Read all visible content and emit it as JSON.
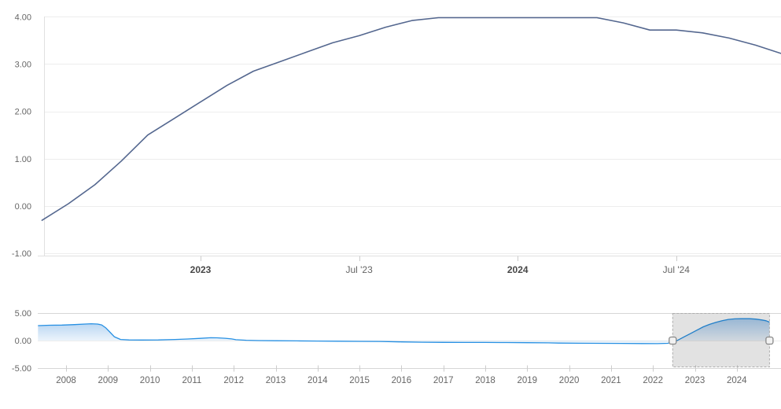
{
  "chart_data": [
    {
      "id": "main",
      "type": "line",
      "title": "",
      "xlabel": "",
      "ylabel": "",
      "x": [
        "Jul 2022",
        "Aug 2022",
        "Sep 2022",
        "Oct 2022",
        "Nov 2022",
        "Dec 2022",
        "Jan 2023",
        "Feb 2023",
        "Mar 2023",
        "Apr 2023",
        "May 2023",
        "Jun 2023",
        "Jul 2023",
        "Aug 2023",
        "Sep 2023",
        "Oct 2023",
        "Nov 2023",
        "Dec 2023",
        "Jan 2024",
        "Feb 2024",
        "Mar 2024",
        "Apr 2024",
        "May 2024",
        "Jun 2024",
        "Jul 2024",
        "Aug 2024",
        "Sep 2024",
        "Oct 2024",
        "Nov 2024"
      ],
      "values": [
        -0.3,
        0.05,
        0.45,
        0.95,
        1.5,
        1.85,
        2.2,
        2.55,
        2.85,
        3.05,
        3.25,
        3.45,
        3.6,
        3.78,
        3.92,
        3.98,
        3.98,
        3.98,
        3.98,
        3.98,
        3.98,
        3.98,
        3.87,
        3.72,
        3.72,
        3.66,
        3.55,
        3.4,
        3.22
      ],
      "ylim": [
        -1.0,
        4.0
      ],
      "grid": true,
      "legend": "none",
      "line_color": "#54678f",
      "yticks": [
        {
          "v": 4,
          "label": "4.00"
        },
        {
          "v": 3,
          "label": "3.00"
        },
        {
          "v": 2,
          "label": "2.00"
        },
        {
          "v": 1,
          "label": "1.00"
        },
        {
          "v": 0,
          "label": "0.00"
        },
        {
          "v": -1,
          "label": "-1.00"
        }
      ],
      "xticks": [
        {
          "i": 6,
          "label": "2023",
          "bold": true
        },
        {
          "i": 12,
          "label": "Jul '23",
          "bold": false
        },
        {
          "i": 18,
          "label": "2024",
          "bold": true
        },
        {
          "i": 24,
          "label": "Jul '24",
          "bold": false
        }
      ]
    },
    {
      "id": "navigator",
      "type": "area",
      "title": "",
      "x": [
        2007.33,
        2007.6,
        2007.9,
        2008.2,
        2008.45,
        2008.6,
        2008.75,
        2008.85,
        2008.95,
        2009.05,
        2009.15,
        2009.3,
        2009.5,
        2009.8,
        2010.2,
        2010.6,
        2010.9,
        2011.2,
        2011.45,
        2011.6,
        2011.8,
        2011.95,
        2012.05,
        2012.3,
        2012.6,
        2013.0,
        2013.5,
        2014.0,
        2014.5,
        2015.0,
        2015.5,
        2016.0,
        2016.5,
        2017.0,
        2017.5,
        2018.0,
        2018.5,
        2019.0,
        2019.5,
        2019.75,
        2020.25,
        2020.75,
        2021.25,
        2021.75,
        2022.1,
        2022.35,
        2022.5,
        2022.6,
        2022.75,
        2022.9,
        2023.05,
        2023.2,
        2023.35,
        2023.5,
        2023.65,
        2023.8,
        2023.95,
        2024.1,
        2024.3,
        2024.45,
        2024.6,
        2024.7,
        2024.78
      ],
      "values": [
        2.72,
        2.78,
        2.82,
        2.9,
        3.0,
        3.05,
        3.0,
        2.85,
        2.3,
        1.5,
        0.7,
        0.2,
        0.12,
        0.1,
        0.12,
        0.2,
        0.28,
        0.4,
        0.52,
        0.5,
        0.42,
        0.3,
        0.15,
        0.05,
        0.0,
        -0.03,
        -0.06,
        -0.09,
        -0.12,
        -0.14,
        -0.16,
        -0.24,
        -0.3,
        -0.33,
        -0.35,
        -0.35,
        -0.36,
        -0.38,
        -0.42,
        -0.46,
        -0.48,
        -0.5,
        -0.52,
        -0.54,
        -0.55,
        -0.5,
        -0.25,
        0.1,
        0.7,
        1.3,
        1.9,
        2.5,
        2.95,
        3.3,
        3.6,
        3.85,
        3.95,
        3.97,
        3.97,
        3.9,
        3.75,
        3.6,
        3.35
      ],
      "ylim": [
        -5.0,
        5.0
      ],
      "legend": "none",
      "line_color": "#2790e3",
      "area_color": "#2f85d9",
      "yticks": [
        {
          "v": 5,
          "label": "5.00"
        },
        {
          "v": 0,
          "label": "0.00"
        },
        {
          "v": -5,
          "label": "-5.00"
        }
      ],
      "xticks": [
        {
          "year": 2008,
          "label": "2008"
        },
        {
          "year": 2009,
          "label": "2009"
        },
        {
          "year": 2010,
          "label": "2010"
        },
        {
          "year": 2011,
          "label": "2011"
        },
        {
          "year": 2012,
          "label": "2012"
        },
        {
          "year": 2013,
          "label": "2013"
        },
        {
          "year": 2014,
          "label": "2014"
        },
        {
          "year": 2015,
          "label": "2015"
        },
        {
          "year": 2016,
          "label": "2016"
        },
        {
          "year": 2017,
          "label": "2017"
        },
        {
          "year": 2018,
          "label": "2018"
        },
        {
          "year": 2019,
          "label": "2019"
        },
        {
          "year": 2020,
          "label": "2020"
        },
        {
          "year": 2021,
          "label": "2021"
        },
        {
          "year": 2022,
          "label": "2022"
        },
        {
          "year": 2023,
          "label": "2023"
        },
        {
          "year": 2024,
          "label": "2024"
        }
      ],
      "selection": {
        "start_year": 2022.47,
        "end_year": 2024.78
      }
    }
  ],
  "colors": {
    "grid": "#ededed",
    "axis_line": "#e0e0e0",
    "tick": "#cccccc",
    "label": "#666666",
    "label_bold": "#474747",
    "nav_outline": "#d6d6d6",
    "selection_fill": "rgba(0,0,0,0.115)",
    "selection_border": "#aeaeae",
    "handle_fill": "#f2f2f2",
    "handle_border": "#888888"
  }
}
